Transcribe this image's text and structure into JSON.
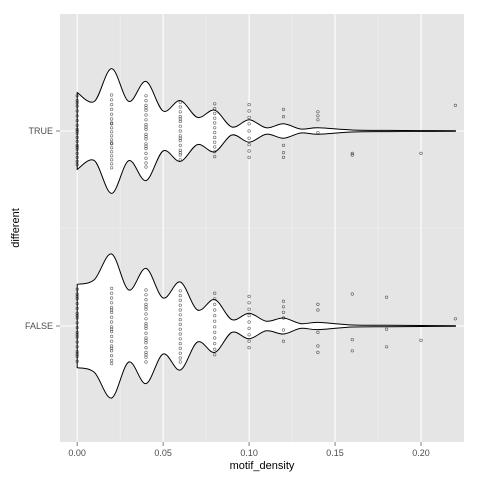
{
  "chart_data": {
    "type": "violin",
    "xlabel": "motif_density",
    "ylabel": "different",
    "xlim": [
      -0.01,
      0.225
    ],
    "x_ticks": [
      0.0,
      0.05,
      0.1,
      0.15,
      0.2
    ],
    "x_tick_labels": [
      "0.00",
      "0.05",
      "0.10",
      "0.15",
      "0.20"
    ],
    "categories": [
      "FALSE",
      "TRUE"
    ],
    "grid": true,
    "legend": "none",
    "colors": {
      "panel_bg": "#e5e5e5",
      "grid": "#ffffff",
      "violin_fill": "#ffffff",
      "violin_line": "#000000",
      "points": "#000000"
    },
    "violins": [
      {
        "category": "TRUE",
        "density_x": [
          0.0,
          0.01,
          0.02,
          0.03,
          0.04,
          0.05,
          0.06,
          0.07,
          0.08,
          0.09,
          0.1,
          0.11,
          0.12,
          0.13,
          0.14,
          0.16,
          0.18,
          0.2,
          0.22
        ],
        "half_width": [
          0.48,
          0.37,
          0.78,
          0.37,
          0.62,
          0.25,
          0.38,
          0.17,
          0.26,
          0.05,
          0.14,
          0.04,
          0.09,
          0.025,
          0.04,
          0.012,
          0.008,
          0.005,
          0.004
        ]
      },
      {
        "category": "FALSE",
        "density_x": [
          0.0,
          0.01,
          0.02,
          0.03,
          0.04,
          0.05,
          0.06,
          0.07,
          0.08,
          0.09,
          0.1,
          0.11,
          0.12,
          0.13,
          0.14,
          0.16,
          0.18,
          0.2,
          0.22
        ],
        "half_width": [
          0.52,
          0.58,
          0.9,
          0.45,
          0.72,
          0.35,
          0.55,
          0.2,
          0.33,
          0.08,
          0.16,
          0.06,
          0.1,
          0.03,
          0.045,
          0.013,
          0.009,
          0.006,
          0.004
        ]
      }
    ],
    "points": [
      {
        "category": "TRUE",
        "x": [
          0.0,
          0.0,
          0.0,
          0.0,
          0.0,
          0.0,
          0.0,
          0.0,
          0.0,
          0.0,
          0.0,
          0.0,
          0.0,
          0.0,
          0.0,
          0.0,
          0.0,
          0.0,
          0.0,
          0.0,
          0.02,
          0.02,
          0.02,
          0.02,
          0.02,
          0.02,
          0.02,
          0.02,
          0.02,
          0.02,
          0.02,
          0.02,
          0.02,
          0.02,
          0.02,
          0.02,
          0.02,
          0.02,
          0.02,
          0.02,
          0.04,
          0.04,
          0.04,
          0.04,
          0.04,
          0.04,
          0.04,
          0.04,
          0.04,
          0.04,
          0.04,
          0.04,
          0.04,
          0.04,
          0.04,
          0.04,
          0.04,
          0.04,
          0.04,
          0.04,
          0.06,
          0.06,
          0.06,
          0.06,
          0.06,
          0.06,
          0.06,
          0.06,
          0.06,
          0.06,
          0.06,
          0.06,
          0.06,
          0.06,
          0.06,
          0.06,
          0.08,
          0.08,
          0.08,
          0.08,
          0.08,
          0.08,
          0.08,
          0.08,
          0.08,
          0.08,
          0.08,
          0.08,
          0.1,
          0.1,
          0.1,
          0.1,
          0.1,
          0.1,
          0.1,
          0.1,
          0.1,
          0.12,
          0.12,
          0.12,
          0.12,
          0.12,
          0.14,
          0.14,
          0.14,
          0.14,
          0.16,
          0.16,
          0.2,
          0.22
        ],
        "offset": [
          -0.44,
          -0.38,
          -0.31,
          -0.25,
          -0.19,
          -0.13,
          -0.07,
          -0.02,
          0.03,
          0.08,
          0.13,
          0.18,
          0.23,
          0.28,
          0.33,
          0.38,
          0.42,
          -0.35,
          0.0,
          0.2,
          -0.45,
          -0.39,
          -0.33,
          -0.27,
          -0.21,
          -0.15,
          -0.09,
          -0.04,
          0.01,
          0.06,
          0.11,
          0.16,
          0.21,
          0.26,
          0.31,
          0.36,
          0.41,
          0.46,
          -0.1,
          0.15,
          -0.44,
          -0.38,
          -0.32,
          -0.26,
          -0.2,
          -0.14,
          -0.08,
          -0.02,
          0.04,
          0.1,
          0.16,
          0.22,
          0.28,
          0.34,
          0.4,
          0.45,
          -0.29,
          0.07,
          0.19,
          -0.05,
          -0.36,
          -0.3,
          -0.24,
          -0.18,
          -0.12,
          -0.06,
          0.0,
          0.06,
          0.12,
          0.18,
          0.24,
          0.3,
          0.36,
          -0.15,
          0.09,
          0.27,
          -0.34,
          -0.28,
          -0.22,
          -0.16,
          -0.1,
          -0.04,
          0.02,
          0.08,
          0.14,
          0.2,
          0.26,
          0.32,
          -0.33,
          -0.25,
          -0.17,
          -0.09,
          0.0,
          0.09,
          0.17,
          0.25,
          0.33,
          -0.27,
          -0.18,
          0.18,
          0.27,
          0.33,
          -0.24,
          -0.19,
          -0.14,
          0.02,
          0.28,
          0.3,
          0.28,
          -0.32
        ]
      },
      {
        "category": "FALSE",
        "x": [
          0.0,
          0.0,
          0.0,
          0.0,
          0.0,
          0.0,
          0.0,
          0.0,
          0.0,
          0.0,
          0.0,
          0.0,
          0.0,
          0.0,
          0.0,
          0.0,
          0.0,
          0.0,
          0.0,
          0.0,
          0.02,
          0.02,
          0.02,
          0.02,
          0.02,
          0.02,
          0.02,
          0.02,
          0.02,
          0.02,
          0.02,
          0.02,
          0.02,
          0.02,
          0.02,
          0.02,
          0.02,
          0.02,
          0.02,
          0.02,
          0.04,
          0.04,
          0.04,
          0.04,
          0.04,
          0.04,
          0.04,
          0.04,
          0.04,
          0.04,
          0.04,
          0.04,
          0.04,
          0.04,
          0.04,
          0.04,
          0.04,
          0.04,
          0.04,
          0.04,
          0.06,
          0.06,
          0.06,
          0.06,
          0.06,
          0.06,
          0.06,
          0.06,
          0.06,
          0.06,
          0.06,
          0.06,
          0.06,
          0.06,
          0.06,
          0.06,
          0.08,
          0.08,
          0.08,
          0.08,
          0.08,
          0.08,
          0.08,
          0.08,
          0.08,
          0.08,
          0.08,
          0.08,
          0.1,
          0.1,
          0.1,
          0.1,
          0.1,
          0.1,
          0.1,
          0.1,
          0.1,
          0.12,
          0.12,
          0.12,
          0.12,
          0.12,
          0.12,
          0.14,
          0.14,
          0.14,
          0.14,
          0.14,
          0.16,
          0.16,
          0.16,
          0.18,
          0.18,
          0.18,
          0.2,
          0.22
        ],
        "offset": [
          -0.46,
          -0.4,
          -0.34,
          -0.28,
          -0.22,
          -0.16,
          -0.1,
          -0.04,
          0.02,
          0.08,
          0.14,
          0.2,
          0.26,
          0.32,
          0.38,
          0.44,
          -0.37,
          -0.13,
          0.11,
          0.35,
          -0.47,
          -0.41,
          -0.35,
          -0.29,
          -0.23,
          -0.17,
          -0.11,
          -0.05,
          0.01,
          0.07,
          0.13,
          0.19,
          0.25,
          0.31,
          0.37,
          0.43,
          0.47,
          -0.2,
          0.04,
          0.28,
          -0.45,
          -0.39,
          -0.33,
          -0.27,
          -0.21,
          -0.15,
          -0.09,
          -0.03,
          0.03,
          0.09,
          0.15,
          0.21,
          0.27,
          0.33,
          0.39,
          0.45,
          -0.24,
          0.0,
          0.18,
          0.36,
          -0.44,
          -0.38,
          -0.32,
          -0.26,
          -0.2,
          -0.14,
          -0.08,
          -0.02,
          0.04,
          0.1,
          0.16,
          0.22,
          0.28,
          0.34,
          0.4,
          0.45,
          -0.41,
          -0.34,
          -0.27,
          -0.2,
          -0.13,
          -0.06,
          0.01,
          0.08,
          0.15,
          0.22,
          0.29,
          0.36,
          -0.37,
          -0.29,
          -0.21,
          -0.13,
          -0.05,
          0.03,
          0.11,
          0.19,
          0.27,
          -0.31,
          -0.24,
          -0.17,
          -0.1,
          0.05,
          0.19,
          -0.27,
          -0.2,
          0.08,
          0.25,
          0.33,
          -0.4,
          0.17,
          0.31,
          -0.36,
          0.04,
          0.26,
          0.18,
          -0.09
        ]
      }
    ]
  }
}
